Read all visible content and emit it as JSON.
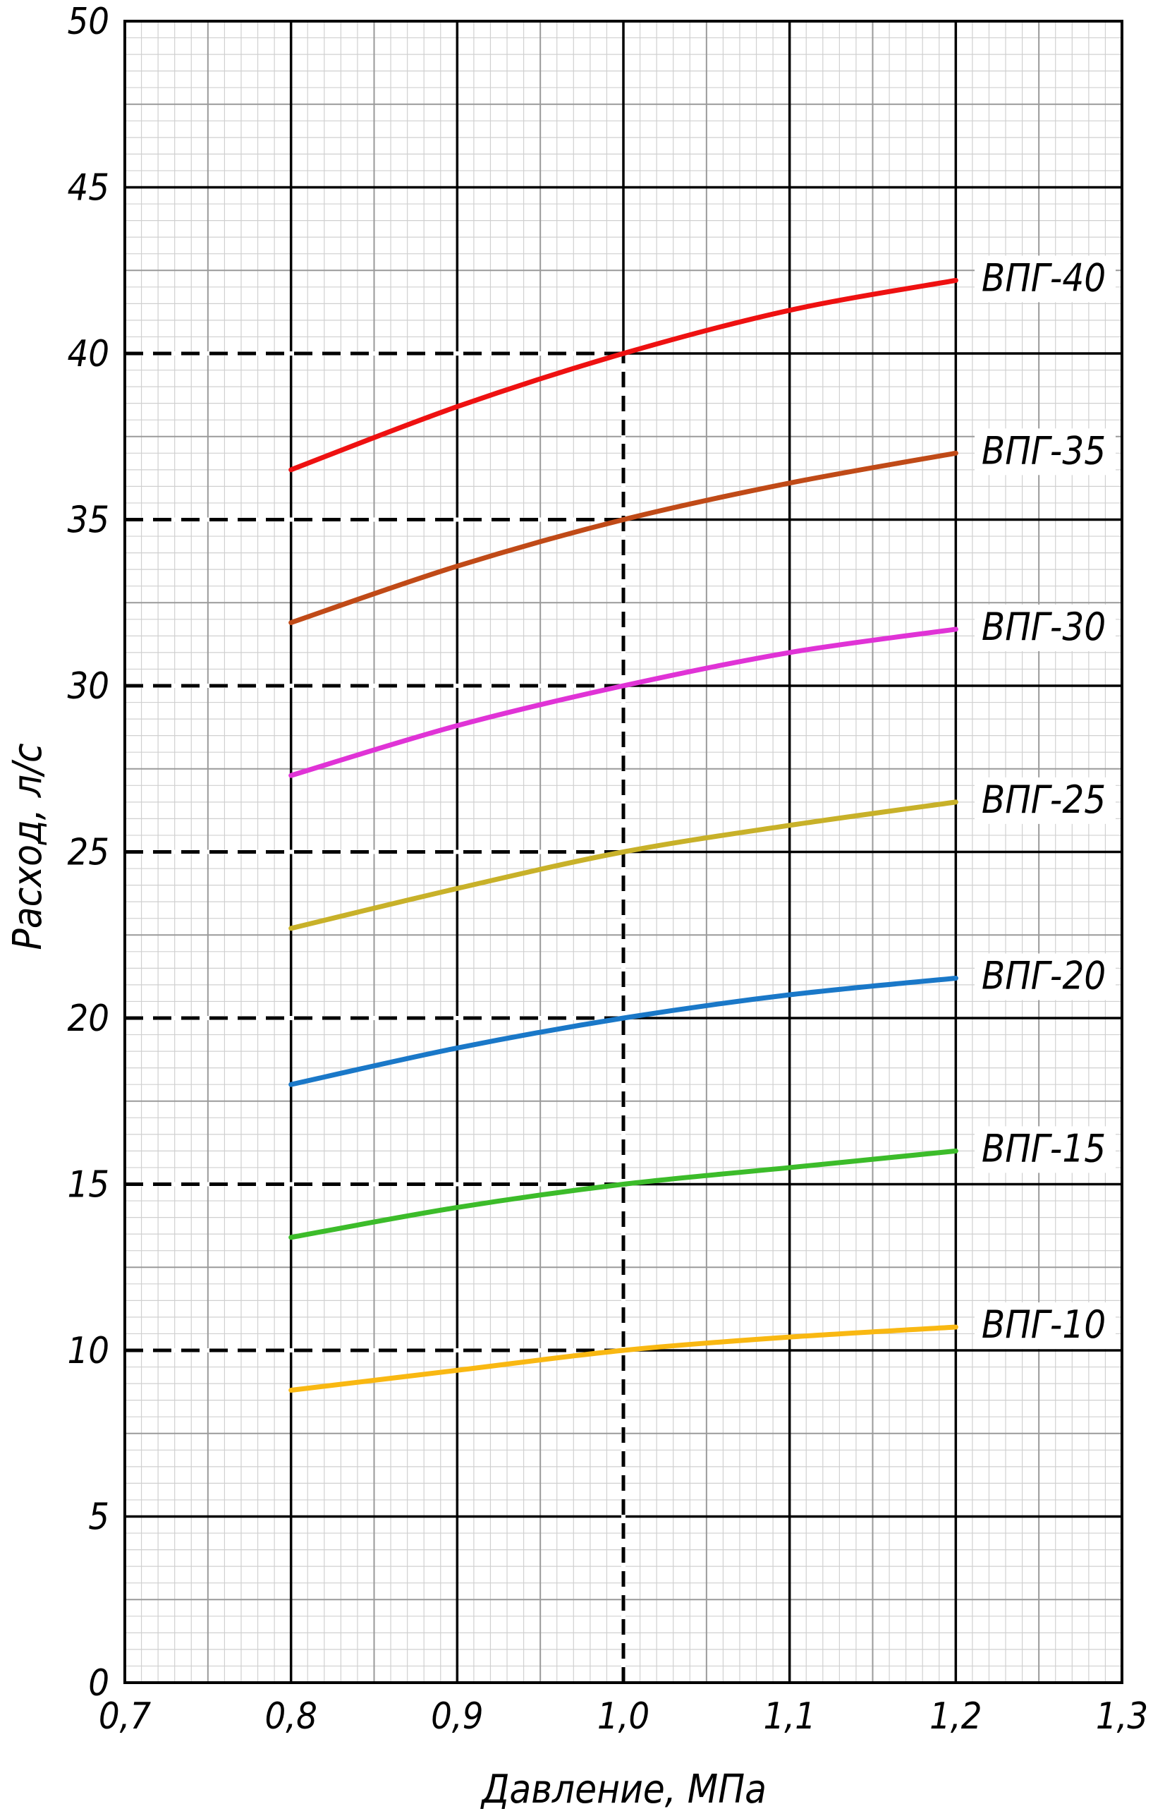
{
  "chart_data": {
    "type": "line",
    "title": "",
    "xlabel": "Давление,  МПа",
    "ylabel": "Расход,  л/с",
    "xlim": [
      0.7,
      1.3
    ],
    "ylim": [
      0,
      50
    ],
    "grid": true,
    "x_ticks": [
      {
        "value": 0.7,
        "label": "0,7"
      },
      {
        "value": 0.8,
        "label": "0,8"
      },
      {
        "value": 0.9,
        "label": "0,9"
      },
      {
        "value": 1.0,
        "label": "1,0"
      },
      {
        "value": 1.1,
        "label": "1,1"
      },
      {
        "value": 1.2,
        "label": "1,2"
      },
      {
        "value": 1.3,
        "label": "1,3"
      }
    ],
    "y_ticks": [
      {
        "value": 0,
        "label": "0"
      },
      {
        "value": 5,
        "label": "5"
      },
      {
        "value": 10,
        "label": "10"
      },
      {
        "value": 15,
        "label": "15"
      },
      {
        "value": 20,
        "label": "20"
      },
      {
        "value": 25,
        "label": "25"
      },
      {
        "value": 30,
        "label": "30"
      },
      {
        "value": 35,
        "label": "35"
      },
      {
        "value": 40,
        "label": "40"
      },
      {
        "value": 45,
        "label": "45"
      },
      {
        "value": 50,
        "label": "50"
      }
    ],
    "reference_lines": {
      "x": 1.0,
      "y": [
        10,
        15,
        20,
        25,
        30,
        35,
        40
      ]
    },
    "series": [
      {
        "name": "ВПГ-40",
        "color": "#ee1111",
        "x": [
          0.8,
          0.9,
          1.0,
          1.1,
          1.2
        ],
        "y": [
          36.5,
          38.4,
          40.0,
          41.3,
          42.2
        ]
      },
      {
        "name": "ВПГ-35",
        "color": "#c04a17",
        "x": [
          0.8,
          0.9,
          1.0,
          1.1,
          1.2
        ],
        "y": [
          31.9,
          33.6,
          35.0,
          36.1,
          37.0
        ]
      },
      {
        "name": "ВПГ-30",
        "color": "#e033d6",
        "x": [
          0.8,
          0.9,
          1.0,
          1.1,
          1.2
        ],
        "y": [
          27.3,
          28.8,
          30.0,
          31.0,
          31.7
        ]
      },
      {
        "name": "ВПГ-25",
        "color": "#c8b129",
        "x": [
          0.8,
          0.9,
          1.0,
          1.1,
          1.2
        ],
        "y": [
          22.7,
          23.9,
          25.0,
          25.8,
          26.5
        ]
      },
      {
        "name": "ВПГ-20",
        "color": "#1a78c8",
        "x": [
          0.8,
          0.9,
          1.0,
          1.1,
          1.2
        ],
        "y": [
          18.0,
          19.1,
          20.0,
          20.7,
          21.2
        ]
      },
      {
        "name": "ВПГ-15",
        "color": "#3cbc2a",
        "x": [
          0.8,
          0.9,
          1.0,
          1.1,
          1.2
        ],
        "y": [
          13.4,
          14.3,
          15.0,
          15.5,
          16.0
        ]
      },
      {
        "name": "ВПГ-10",
        "color": "#f9b812",
        "x": [
          0.8,
          0.9,
          1.0,
          1.1,
          1.2
        ],
        "y": [
          8.8,
          9.4,
          10.0,
          10.4,
          10.7
        ]
      }
    ]
  }
}
